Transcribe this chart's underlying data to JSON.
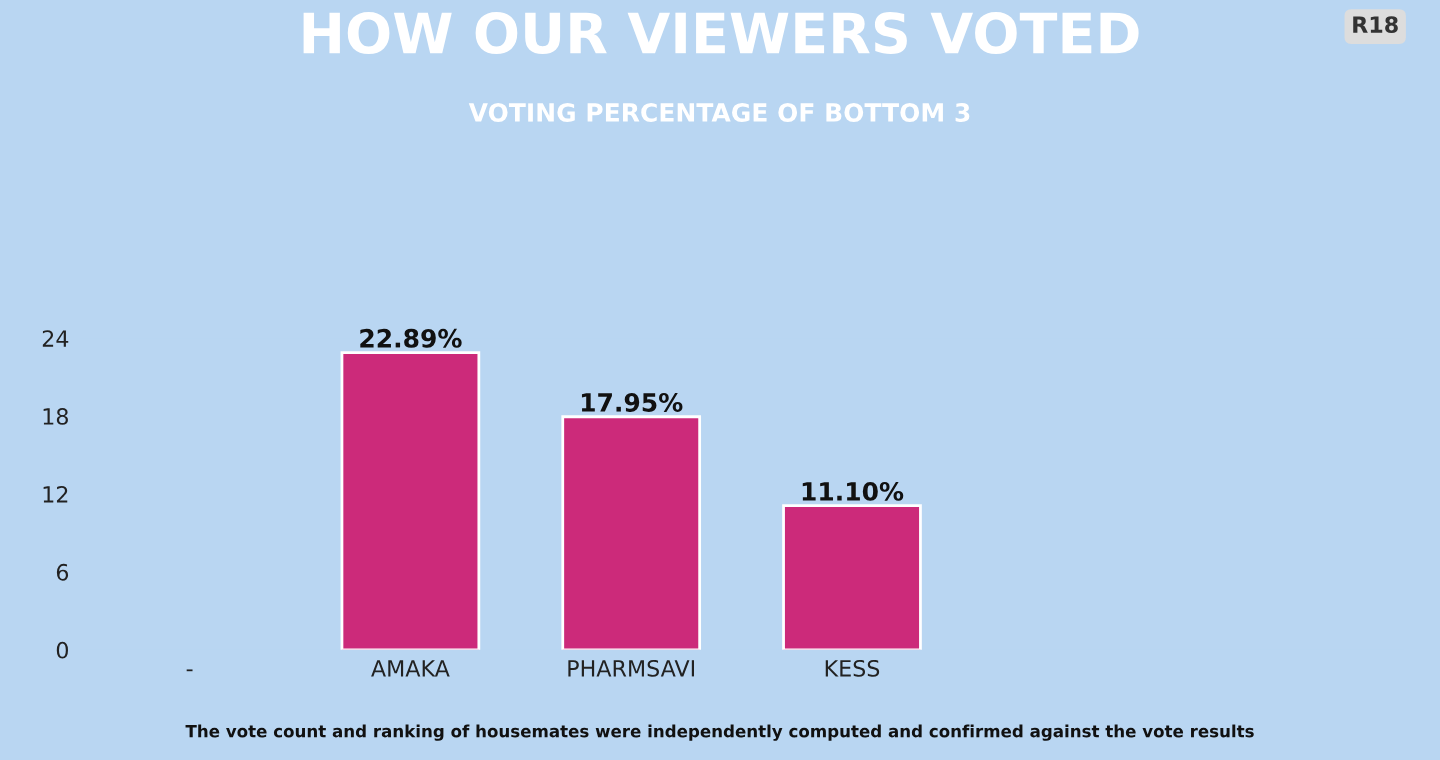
{
  "chart_data": {
    "type": "bar",
    "title": "HOW OUR VIEWERS VOTED",
    "subtitle": "VOTING PERCENTAGE OF BOTTOM 3",
    "categories": [
      "-",
      "AMAKA",
      "PHARMSAVI",
      "KESS",
      null,
      null
    ],
    "values": [
      null,
      22.89,
      17.95,
      11.1,
      null,
      null
    ],
    "value_labels": [
      null,
      "22.89%",
      "17.95%",
      "11.10%",
      null,
      null
    ],
    "color": "#cc2a7a",
    "ylim": [
      0,
      24
    ],
    "yticks": [
      0,
      6,
      12,
      18,
      24
    ],
    "grid": false,
    "legend": false,
    "annotations": [
      "R18",
      "The vote count and ranking of housemates were independently computed and confirmed against the vote results"
    ]
  }
}
